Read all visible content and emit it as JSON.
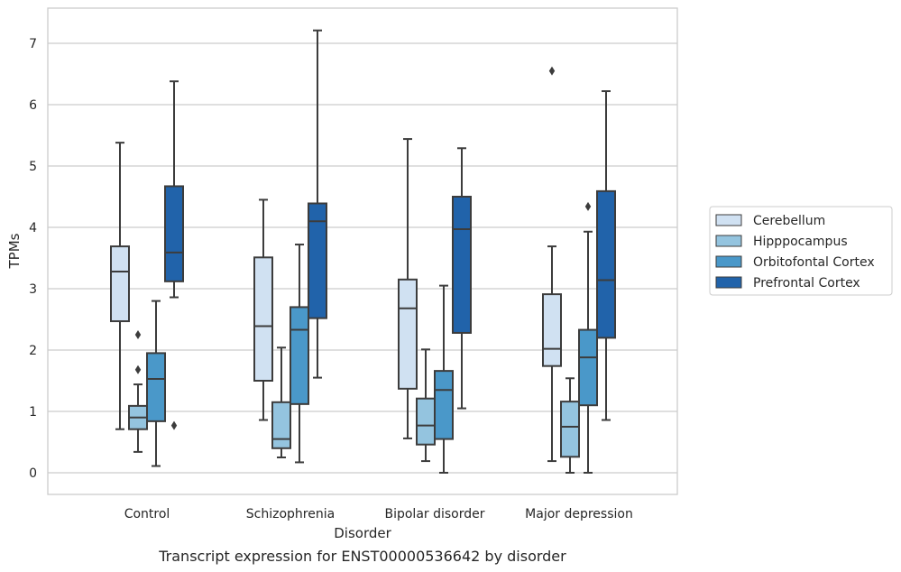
{
  "chart_data": {
    "type": "box",
    "title": "",
    "caption": "Transcript expression for ENST00000536642 by disorder",
    "xlabel": "Disorder",
    "ylabel": "TPMs",
    "ylim": [
      -0.35,
      7.6
    ],
    "yticks": [
      0,
      1,
      2,
      3,
      4,
      5,
      6,
      7
    ],
    "grid": "horizontal",
    "legend_position": "right",
    "categories": [
      "Control",
      "Schizophrenia",
      "Bipolar disorder",
      "Major depression"
    ],
    "series": [
      {
        "name": "Cerebellum",
        "color": "#d0e1f2",
        "boxes": [
          {
            "whislo": 0.71,
            "q1": 2.47,
            "med": 3.28,
            "q3": 3.69,
            "whishi": 5.38,
            "fliers": []
          },
          {
            "whislo": 0.86,
            "q1": 1.5,
            "med": 2.39,
            "q3": 3.51,
            "whishi": 4.45,
            "fliers": []
          },
          {
            "whislo": 0.56,
            "q1": 1.37,
            "med": 2.68,
            "q3": 3.15,
            "whishi": 5.44,
            "fliers": []
          },
          {
            "whislo": 0.19,
            "q1": 1.74,
            "med": 2.02,
            "q3": 2.91,
            "whishi": 3.69,
            "fliers": [
              6.55
            ]
          }
        ]
      },
      {
        "name": "Hipppocampus",
        "color": "#94c4df",
        "boxes": [
          {
            "whislo": 0.34,
            "q1": 0.71,
            "med": 0.9,
            "q3": 1.09,
            "whishi": 1.44,
            "fliers": [
              1.68,
              2.25
            ]
          },
          {
            "whislo": 0.25,
            "q1": 0.4,
            "med": 0.55,
            "q3": 1.15,
            "whishi": 2.04,
            "fliers": []
          },
          {
            "whislo": 0.19,
            "q1": 0.46,
            "med": 0.77,
            "q3": 1.21,
            "whishi": 2.01,
            "fliers": []
          },
          {
            "whislo": 0.0,
            "q1": 0.26,
            "med": 0.75,
            "q3": 1.16,
            "whishi": 1.54,
            "fliers": []
          }
        ]
      },
      {
        "name": "Orbitofontal Cortex",
        "color": "#4a98c9",
        "boxes": [
          {
            "whislo": 0.11,
            "q1": 0.84,
            "med": 1.53,
            "q3": 1.95,
            "whishi": 2.8,
            "fliers": []
          },
          {
            "whislo": 0.17,
            "q1": 1.12,
            "med": 2.33,
            "q3": 2.7,
            "whishi": 3.72,
            "fliers": []
          },
          {
            "whislo": 0.0,
            "q1": 0.55,
            "med": 1.35,
            "q3": 1.66,
            "whishi": 3.05,
            "fliers": []
          },
          {
            "whislo": 0.0,
            "q1": 1.1,
            "med": 1.88,
            "q3": 2.33,
            "whishi": 3.93,
            "fliers": [
              4.34
            ]
          }
        ]
      },
      {
        "name": "Prefrontal Cortex",
        "color": "#2163aa",
        "boxes": [
          {
            "whislo": 2.86,
            "q1": 3.12,
            "med": 3.59,
            "q3": 4.67,
            "whishi": 6.38,
            "fliers": [
              0.77
            ]
          },
          {
            "whislo": 1.55,
            "q1": 2.52,
            "med": 4.1,
            "q3": 4.39,
            "whishi": 7.21,
            "fliers": []
          },
          {
            "whislo": 1.05,
            "q1": 2.28,
            "med": 3.97,
            "q3": 4.5,
            "whishi": 5.29,
            "fliers": []
          },
          {
            "whislo": 0.86,
            "q1": 2.2,
            "med": 3.14,
            "q3": 4.59,
            "whishi": 6.22,
            "fliers": []
          }
        ]
      }
    ]
  }
}
